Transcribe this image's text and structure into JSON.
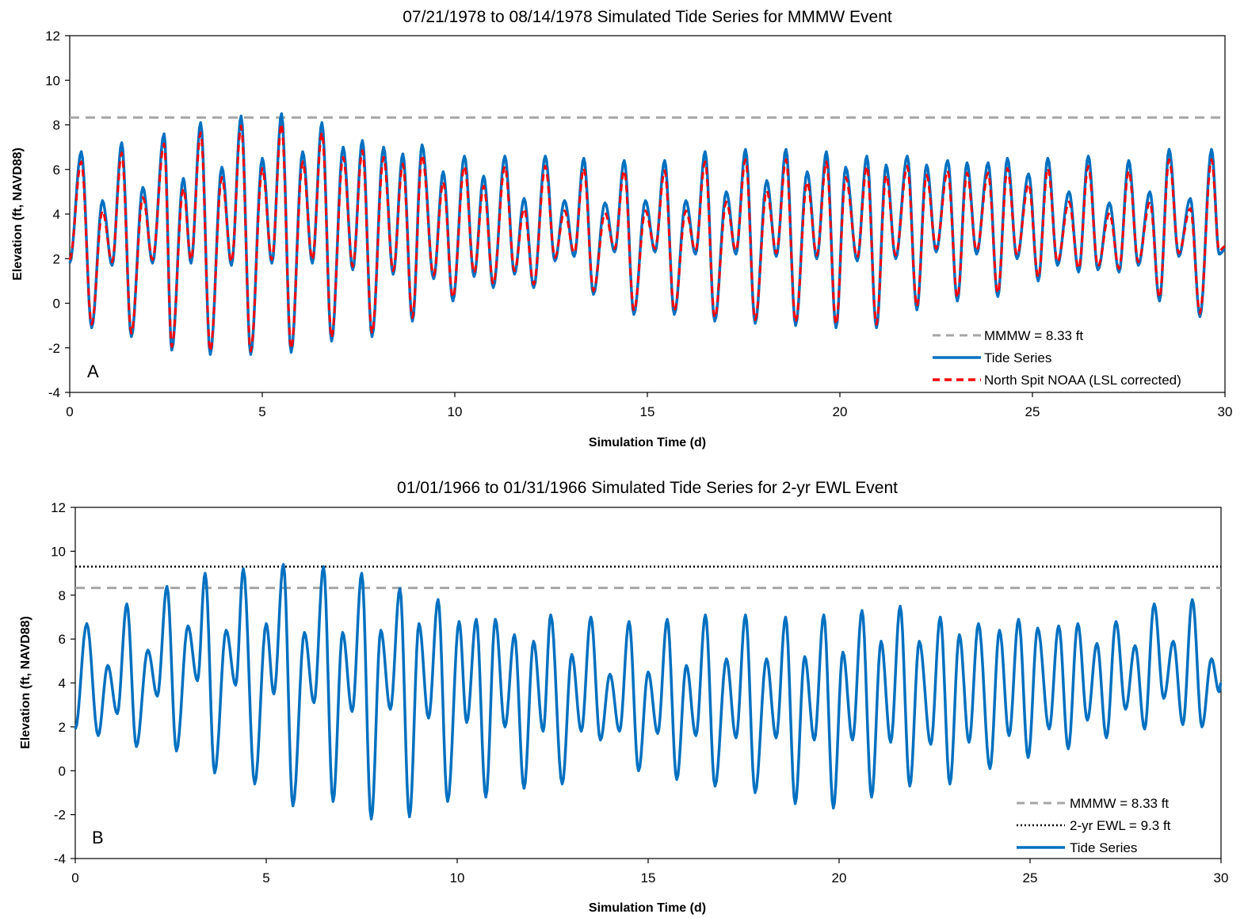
{
  "chart_data": [
    {
      "type": "line",
      "panel": "A",
      "title": "07/21/1978 to 08/14/1978 Simulated Tide Series for MMMW Event",
      "xlabel": "Simulation Time (d)",
      "ylabel": "Elevation (ft, NAVD88)",
      "xlim": [
        0,
        30
      ],
      "ylim": [
        -4,
        12
      ],
      "xticks": [
        0,
        5,
        10,
        15,
        20,
        25,
        30
      ],
      "yticks": [
        -4,
        -2,
        0,
        2,
        4,
        6,
        8,
        10,
        12
      ],
      "grid": false,
      "legend_position": "bottom-right",
      "reference_lines": [
        {
          "name": "MMMW = 8.33 ft",
          "y": 8.33,
          "style": "dashed",
          "color": "#a6a6a6"
        }
      ],
      "series": [
        {
          "name": "Tide Series",
          "color": "#0070c0",
          "style": "solid",
          "extrema": [
            [
              0,
              1.8
            ],
            [
              0.3,
              6.8
            ],
            [
              0.57,
              -1.1
            ],
            [
              0.85,
              4.6
            ],
            [
              1.1,
              1.7
            ],
            [
              1.35,
              7.2
            ],
            [
              1.6,
              -1.5
            ],
            [
              1.9,
              5.2
            ],
            [
              2.15,
              1.8
            ],
            [
              2.45,
              7.6
            ],
            [
              2.65,
              -2.1
            ],
            [
              2.95,
              5.6
            ],
            [
              3.15,
              1.8
            ],
            [
              3.4,
              8.1
            ],
            [
              3.65,
              -2.3
            ],
            [
              3.95,
              6.1
            ],
            [
              4.2,
              1.7
            ],
            [
              4.45,
              8.4
            ],
            [
              4.7,
              -2.3
            ],
            [
              5.0,
              6.5
            ],
            [
              5.25,
              1.8
            ],
            [
              5.5,
              8.5
            ],
            [
              5.75,
              -2.2
            ],
            [
              6.05,
              6.8
            ],
            [
              6.3,
              1.8
            ],
            [
              6.55,
              8.1
            ],
            [
              6.8,
              -1.7
            ],
            [
              7.1,
              7.0
            ],
            [
              7.35,
              1.5
            ],
            [
              7.6,
              7.3
            ],
            [
              7.85,
              -1.5
            ],
            [
              8.15,
              7.0
            ],
            [
              8.4,
              1.3
            ],
            [
              8.65,
              6.7
            ],
            [
              8.9,
              -0.8
            ],
            [
              9.15,
              7.1
            ],
            [
              9.45,
              1.1
            ],
            [
              9.7,
              5.9
            ],
            [
              9.95,
              0.1
            ],
            [
              10.25,
              6.6
            ],
            [
              10.5,
              1.2
            ],
            [
              10.75,
              5.7
            ],
            [
              11.0,
              0.7
            ],
            [
              11.3,
              6.6
            ],
            [
              11.55,
              1.3
            ],
            [
              11.8,
              4.7
            ],
            [
              12.05,
              0.7
            ],
            [
              12.35,
              6.6
            ],
            [
              12.6,
              1.9
            ],
            [
              12.85,
              4.6
            ],
            [
              13.1,
              2.1
            ],
            [
              13.35,
              6.5
            ],
            [
              13.6,
              0.4
            ],
            [
              13.9,
              4.5
            ],
            [
              14.15,
              2.3
            ],
            [
              14.4,
              6.4
            ],
            [
              14.65,
              -0.5
            ],
            [
              14.95,
              4.6
            ],
            [
              15.2,
              2.3
            ],
            [
              15.45,
              6.4
            ],
            [
              15.7,
              -0.5
            ],
            [
              16.0,
              4.6
            ],
            [
              16.25,
              2.2
            ],
            [
              16.5,
              6.8
            ],
            [
              16.75,
              -0.8
            ],
            [
              17.05,
              5.0
            ],
            [
              17.3,
              2.2
            ],
            [
              17.55,
              6.9
            ],
            [
              17.8,
              -0.9
            ],
            [
              18.1,
              5.5
            ],
            [
              18.35,
              2.1
            ],
            [
              18.6,
              6.9
            ],
            [
              18.85,
              -1.0
            ],
            [
              19.15,
              5.9
            ],
            [
              19.4,
              2.0
            ],
            [
              19.65,
              6.8
            ],
            [
              19.9,
              -1.1
            ],
            [
              20.15,
              6.1
            ],
            [
              20.45,
              1.9
            ],
            [
              20.7,
              6.6
            ],
            [
              20.95,
              -1.1
            ],
            [
              21.2,
              6.2
            ],
            [
              21.45,
              2.0
            ],
            [
              21.75,
              6.6
            ],
            [
              22.0,
              -0.3
            ],
            [
              22.25,
              6.2
            ],
            [
              22.5,
              2.3
            ],
            [
              22.8,
              6.4
            ],
            [
              23.05,
              0.1
            ],
            [
              23.3,
              6.3
            ],
            [
              23.55,
              2.2
            ],
            [
              23.85,
              6.3
            ],
            [
              24.1,
              0.3
            ],
            [
              24.35,
              6.5
            ],
            [
              24.6,
              2.0
            ],
            [
              24.9,
              5.8
            ],
            [
              25.15,
              1.0
            ],
            [
              25.4,
              6.5
            ],
            [
              25.65,
              1.7
            ],
            [
              25.95,
              5.0
            ],
            [
              26.2,
              1.4
            ],
            [
              26.45,
              6.6
            ],
            [
              26.7,
              1.5
            ],
            [
              27.0,
              4.5
            ],
            [
              27.25,
              1.4
            ],
            [
              27.5,
              6.4
            ],
            [
              27.75,
              1.7
            ],
            [
              28.05,
              5.0
            ],
            [
              28.3,
              0.1
            ],
            [
              28.55,
              6.9
            ],
            [
              28.8,
              2.1
            ],
            [
              29.1,
              4.7
            ],
            [
              29.35,
              -0.6
            ],
            [
              29.65,
              6.9
            ],
            [
              29.85,
              2.2
            ],
            [
              30.0,
              2.4
            ]
          ]
        },
        {
          "name": "North Spit NOAA (LSL corrected)",
          "color": "#ff0000",
          "style": "dashed",
          "note_offset_from_tide": "slightly lower peaks (about 0.5 ft)"
        }
      ]
    },
    {
      "type": "line",
      "panel": "B",
      "title": "01/01/1966 to 01/31/1966 Simulated Tide Series for 2-yr EWL Event",
      "xlabel": "Simulation Time (d)",
      "ylabel": "Elevation (ft, NAVD88)",
      "xlim": [
        0,
        30
      ],
      "ylim": [
        -4,
        12
      ],
      "xticks": [
        0,
        5,
        10,
        15,
        20,
        25,
        30
      ],
      "yticks": [
        -4,
        -2,
        0,
        2,
        4,
        6,
        8,
        10,
        12
      ],
      "grid": false,
      "legend_position": "bottom-right",
      "reference_lines": [
        {
          "name": "MMMW = 8.33 ft",
          "y": 8.33,
          "style": "dashed",
          "color": "#a6a6a6"
        },
        {
          "name": "2-yr EWL = 9.3 ft",
          "y": 9.3,
          "style": "dotted",
          "color": "#000000"
        }
      ],
      "series": [
        {
          "name": "Tide Series",
          "color": "#0070c0",
          "style": "solid",
          "extrema": [
            [
              0,
              1.9
            ],
            [
              0.3,
              6.7
            ],
            [
              0.6,
              1.6
            ],
            [
              0.85,
              4.8
            ],
            [
              1.1,
              2.6
            ],
            [
              1.35,
              7.6
            ],
            [
              1.6,
              1.1
            ],
            [
              1.9,
              5.5
            ],
            [
              2.15,
              3.4
            ],
            [
              2.4,
              8.4
            ],
            [
              2.65,
              0.9
            ],
            [
              2.95,
              6.6
            ],
            [
              3.2,
              4.1
            ],
            [
              3.4,
              9.0
            ],
            [
              3.65,
              -0.1
            ],
            [
              3.95,
              6.4
            ],
            [
              4.2,
              3.9
            ],
            [
              4.4,
              9.2
            ],
            [
              4.7,
              -0.6
            ],
            [
              5.0,
              6.7
            ],
            [
              5.2,
              3.5
            ],
            [
              5.45,
              9.4
            ],
            [
              5.7,
              -1.6
            ],
            [
              6.0,
              6.3
            ],
            [
              6.25,
              3.1
            ],
            [
              6.5,
              9.3
            ],
            [
              6.75,
              -1.4
            ],
            [
              7.0,
              6.3
            ],
            [
              7.25,
              2.7
            ],
            [
              7.5,
              9.0
            ],
            [
              7.75,
              -2.2
            ],
            [
              8.0,
              6.4
            ],
            [
              8.25,
              2.8
            ],
            [
              8.5,
              8.3
            ],
            [
              8.75,
              -2.1
            ],
            [
              9.0,
              6.7
            ],
            [
              9.25,
              2.4
            ],
            [
              9.5,
              7.8
            ],
            [
              9.75,
              -1.4
            ],
            [
              10.05,
              6.8
            ],
            [
              10.25,
              2.2
            ],
            [
              10.5,
              6.9
            ],
            [
              10.75,
              -1.2
            ],
            [
              11.0,
              6.9
            ],
            [
              11.25,
              2.0
            ],
            [
              11.5,
              6.2
            ],
            [
              11.75,
              -0.8
            ],
            [
              12.0,
              5.9
            ],
            [
              12.25,
              1.8
            ],
            [
              12.45,
              7.1
            ],
            [
              12.75,
              -0.6
            ],
            [
              13.0,
              5.3
            ],
            [
              13.25,
              1.8
            ],
            [
              13.5,
              7.0
            ],
            [
              13.75,
              1.4
            ],
            [
              14.0,
              4.4
            ],
            [
              14.25,
              1.8
            ],
            [
              14.5,
              6.8
            ],
            [
              14.75,
              0.0
            ],
            [
              15.0,
              4.5
            ],
            [
              15.25,
              1.7
            ],
            [
              15.5,
              6.9
            ],
            [
              15.75,
              -0.4
            ],
            [
              16.0,
              4.8
            ],
            [
              16.25,
              1.6
            ],
            [
              16.5,
              7.1
            ],
            [
              16.75,
              -0.7
            ],
            [
              17.05,
              5.1
            ],
            [
              17.3,
              1.5
            ],
            [
              17.55,
              7.1
            ],
            [
              17.8,
              -1.0
            ],
            [
              18.1,
              5.1
            ],
            [
              18.35,
              1.5
            ],
            [
              18.6,
              7.0
            ],
            [
              18.85,
              -1.5
            ],
            [
              19.1,
              5.2
            ],
            [
              19.35,
              1.4
            ],
            [
              19.6,
              7.1
            ],
            [
              19.85,
              -1.7
            ],
            [
              20.1,
              5.4
            ],
            [
              20.35,
              1.4
            ],
            [
              20.6,
              7.3
            ],
            [
              20.85,
              -1.2
            ],
            [
              21.1,
              5.9
            ],
            [
              21.35,
              1.3
            ],
            [
              21.6,
              7.5
            ],
            [
              21.85,
              -0.7
            ],
            [
              22.1,
              5.9
            ],
            [
              22.4,
              1.2
            ],
            [
              22.65,
              7.0
            ],
            [
              22.9,
              -0.6
            ],
            [
              23.15,
              6.2
            ],
            [
              23.4,
              1.3
            ],
            [
              23.65,
              6.7
            ],
            [
              23.95,
              0.1
            ],
            [
              24.2,
              6.4
            ],
            [
              24.45,
              1.6
            ],
            [
              24.7,
              6.9
            ],
            [
              24.95,
              0.6
            ],
            [
              25.2,
              6.5
            ],
            [
              25.5,
              1.9
            ],
            [
              25.75,
              6.6
            ],
            [
              26.0,
              1.0
            ],
            [
              26.25,
              6.7
            ],
            [
              26.5,
              2.3
            ],
            [
              26.75,
              5.8
            ],
            [
              27.0,
              1.5
            ],
            [
              27.25,
              6.8
            ],
            [
              27.5,
              2.8
            ],
            [
              27.75,
              5.7
            ],
            [
              28.0,
              1.9
            ],
            [
              28.25,
              7.6
            ],
            [
              28.5,
              3.3
            ],
            [
              28.75,
              5.9
            ],
            [
              29.0,
              2.1
            ],
            [
              29.25,
              7.8
            ],
            [
              29.5,
              2.0
            ],
            [
              29.75,
              5.1
            ],
            [
              29.95,
              3.6
            ],
            [
              30.0,
              4.0
            ]
          ]
        }
      ]
    }
  ]
}
